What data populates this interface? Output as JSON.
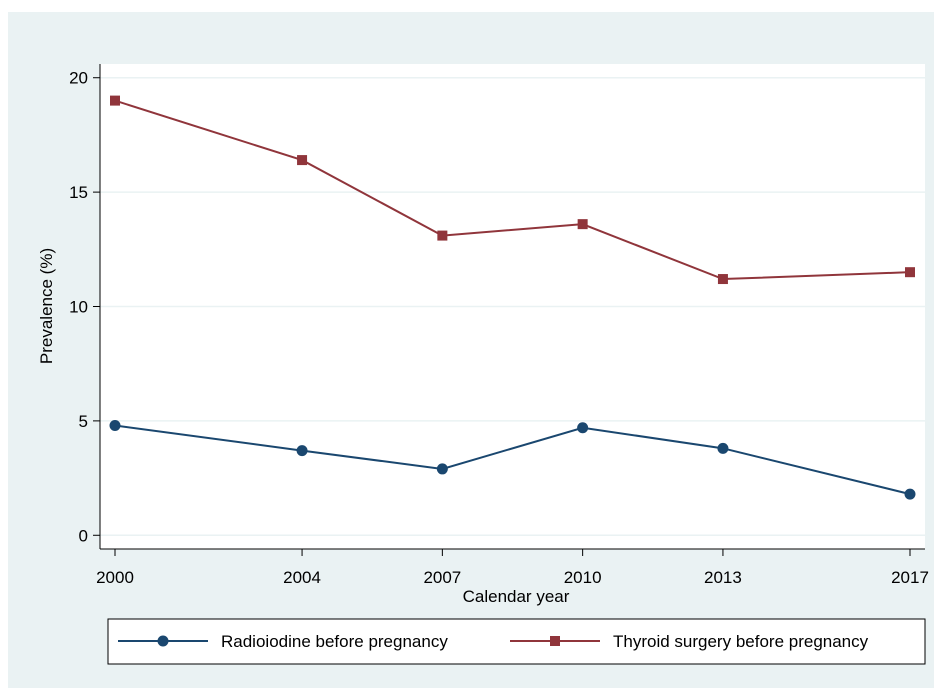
{
  "chart_data": {
    "type": "line",
    "title": "",
    "xlabel": "Calendar year",
    "ylabel": "Prevalence (%)",
    "x": [
      2000,
      2004,
      2007,
      2010,
      2013,
      2017
    ],
    "x_tick_labels": [
      "2000",
      "2004",
      "2007",
      "2010",
      "2013",
      "2017"
    ],
    "y_ticks": [
      0,
      5,
      10,
      15,
      20
    ],
    "y_tick_labels": [
      "0",
      "5",
      "10",
      "15",
      "20"
    ],
    "ylim": [
      -0.6,
      20.6
    ],
    "grid": true,
    "legend_position": "bottom",
    "series": [
      {
        "name": "Radioiodine before pregnancy",
        "values": [
          4.8,
          3.7,
          2.9,
          4.7,
          3.8,
          1.8
        ],
        "color": "#1a476f",
        "marker": "circle"
      },
      {
        "name": "Thyroid surgery before pregnancy",
        "values": [
          19.0,
          16.4,
          13.1,
          13.6,
          11.2,
          11.5
        ],
        "color": "#90353b",
        "marker": "square"
      }
    ],
    "colors": {
      "background": "#eaf2f3",
      "plot_background": "#ffffff",
      "gridline": "#eaf2f3"
    }
  }
}
